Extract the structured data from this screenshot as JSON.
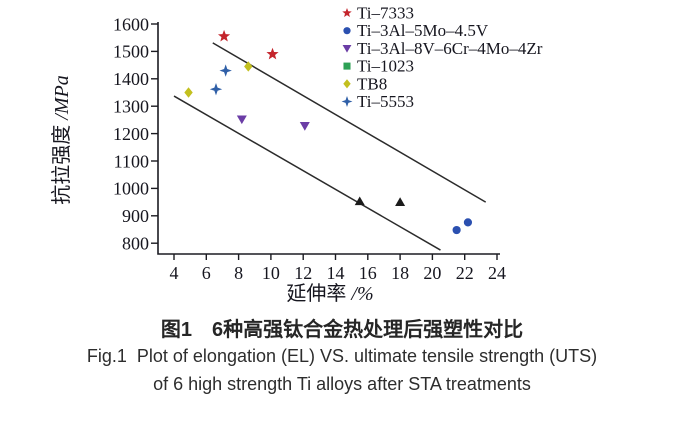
{
  "figure": {
    "caption_cn": "图1　6种高强钛合金热处理后强塑性对比",
    "caption_en_line1": "Fig.1  Plot of elongation (EL) VS. ultimate tensile strength (UTS)",
    "caption_en_line2": "of 6 high strength Ti alloys after STA treatments"
  },
  "chart_data": {
    "type": "scatter",
    "title": "",
    "xlabel": "延伸率 /%",
    "ylabel": "抗拉强度 /MPa",
    "xlim": [
      3.0,
      24.3
    ],
    "ylim": [
      755,
      1610
    ],
    "xticks": [
      4,
      6,
      8,
      10,
      12,
      14,
      16,
      18,
      20,
      22,
      24
    ],
    "yticks": [
      800,
      900,
      1000,
      1100,
      1200,
      1300,
      1400,
      1500,
      1600
    ],
    "grid": false,
    "legend_position": "top-right",
    "axis_color": "#1b1b22",
    "tick_text_color": "#16161f",
    "trend_line_color": "#2b2b2b",
    "series": [
      {
        "name": "Ti–7333",
        "marker": "star",
        "color": "#c4252c",
        "points": [
          [
            7.1,
            1555
          ],
          [
            10.1,
            1490
          ]
        ]
      },
      {
        "name": "Ti–3Al–5Mo–4.5V",
        "marker": "circle",
        "color": "#2b50b0",
        "points": [
          [
            21.5,
            848
          ],
          [
            22.2,
            876
          ]
        ]
      },
      {
        "name": "Ti–3Al–8V–6Cr–4Mo–4Zr",
        "marker": "triangle-down",
        "color": "#6b3da6",
        "points": [
          [
            8.2,
            1252
          ],
          [
            12.1,
            1228
          ]
        ]
      },
      {
        "name": "Ti–1023",
        "marker": "square",
        "color": "#2da155",
        "plot_marker": "triangle-up",
        "plot_color": "#1b1b1b",
        "points": [
          [
            15.5,
            953
          ],
          [
            18.0,
            950
          ]
        ]
      },
      {
        "name": "TB8",
        "marker": "diamond",
        "color": "#c3c01f",
        "points": [
          [
            8.6,
            1445
          ],
          [
            4.9,
            1350
          ]
        ]
      },
      {
        "name": "Ti–5553",
        "marker": "star4",
        "color": "#2f5fa7",
        "points": [
          [
            7.2,
            1430
          ],
          [
            6.6,
            1362
          ]
        ]
      }
    ],
    "trend_lines": [
      {
        "x1": 6.4,
        "y1": 1531,
        "x2": 23.3,
        "y2": 950
      },
      {
        "x1": 4.0,
        "y1": 1337,
        "x2": 20.5,
        "y2": 775
      }
    ]
  }
}
